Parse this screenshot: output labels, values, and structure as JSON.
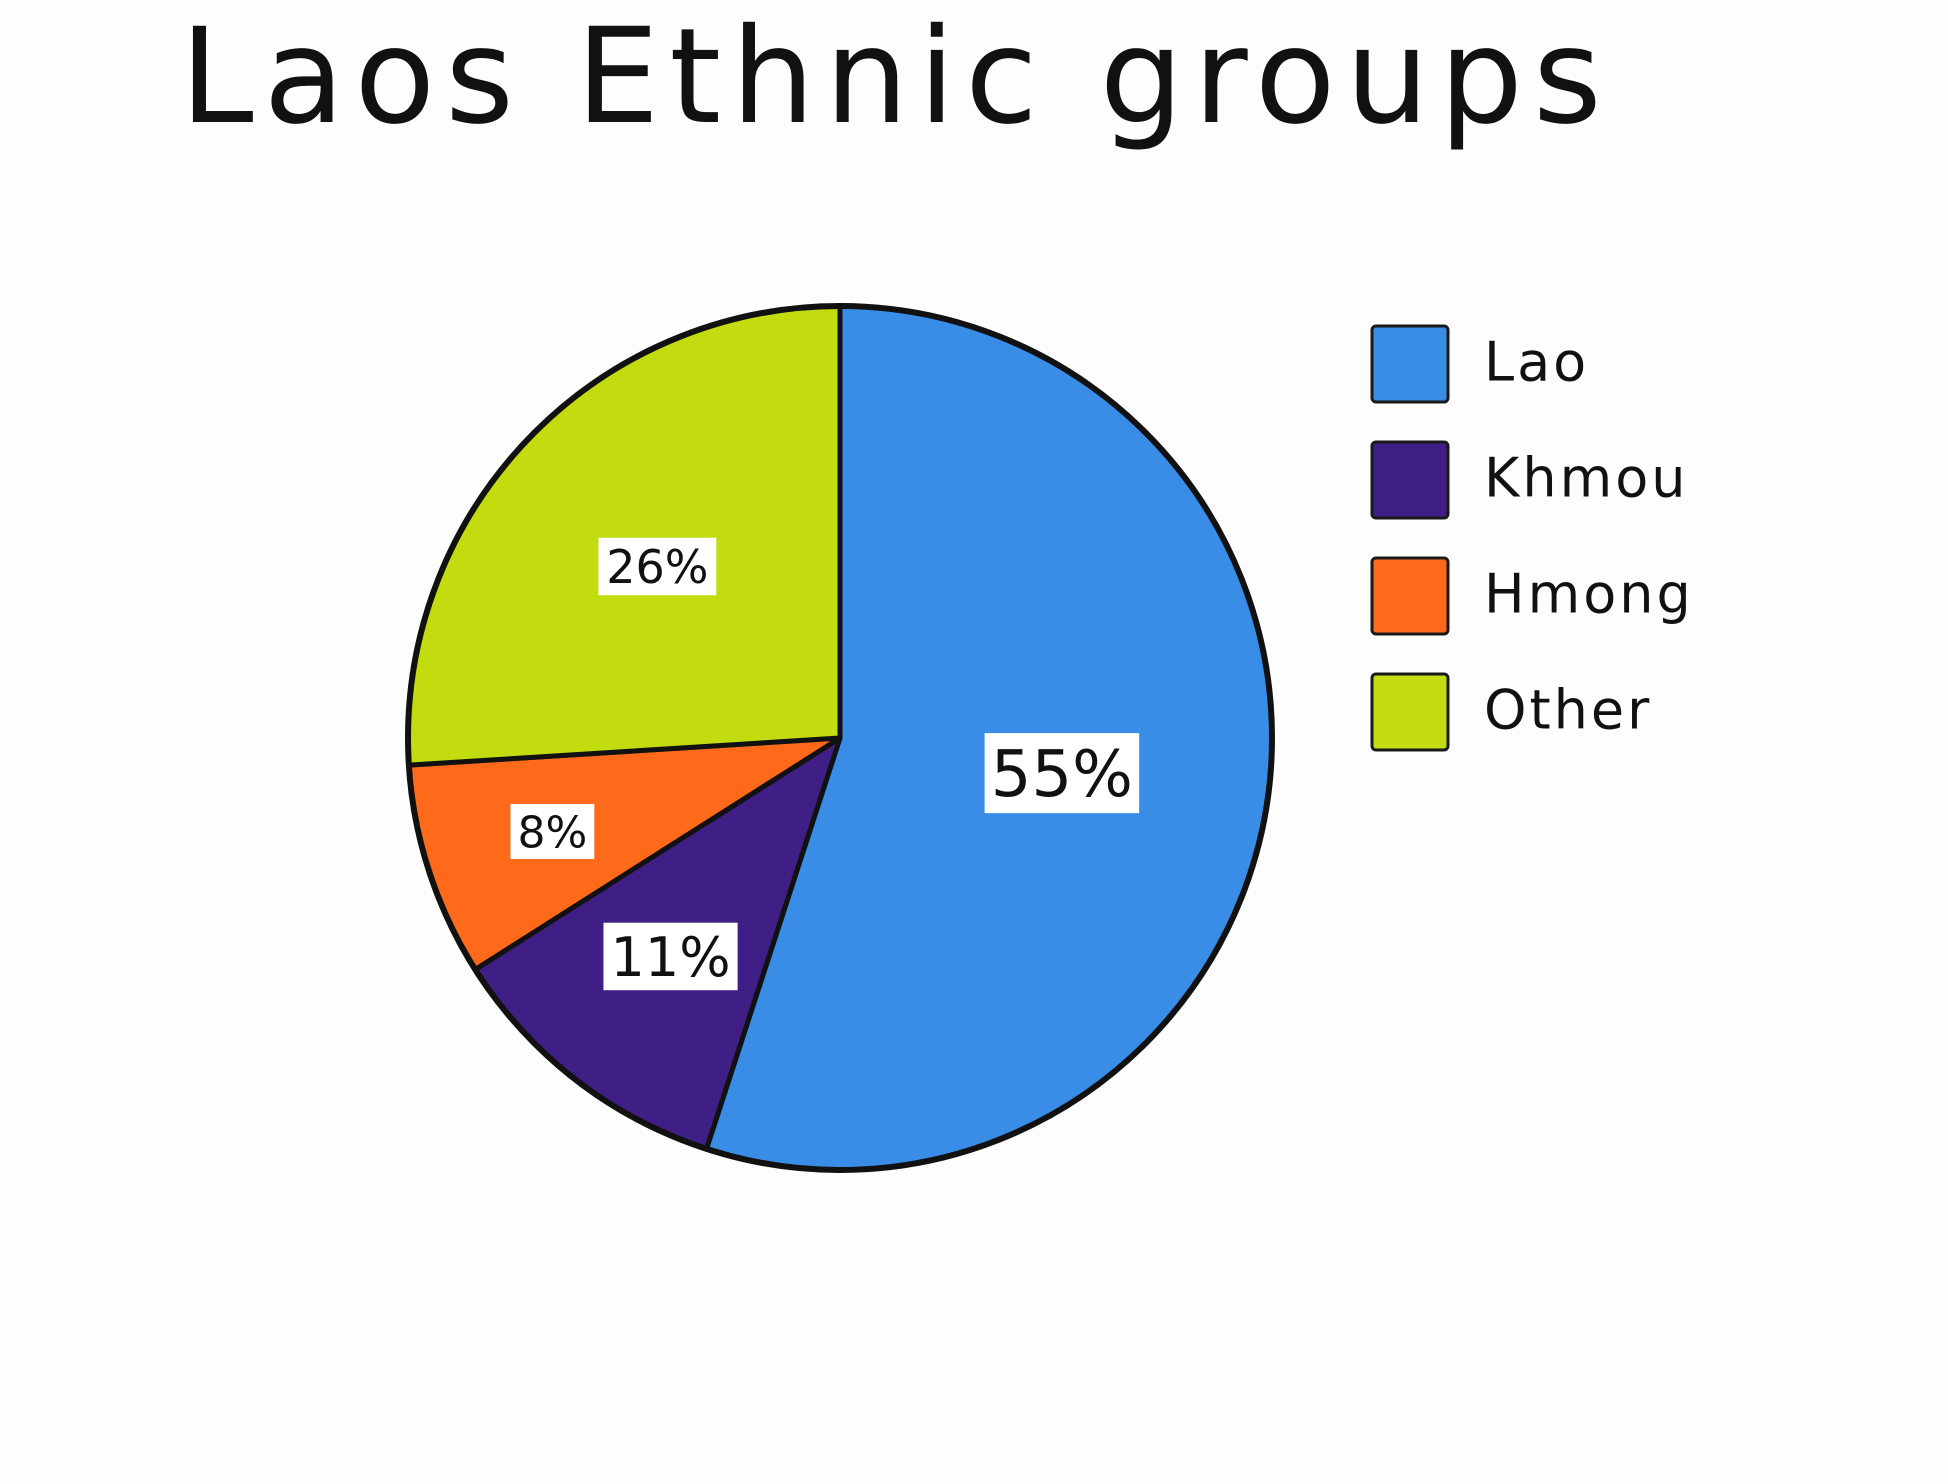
{
  "chart_data": {
    "type": "pie",
    "title": "Laos Ethnic groups",
    "categories": [
      "Lao",
      "Khmou",
      "Hmong",
      "Other"
    ],
    "values": [
      55,
      11,
      8,
      26
    ],
    "labels": [
      "55%",
      "11%",
      "8%",
      "26%"
    ],
    "colors": [
      "#3a8de6",
      "#3f1f86",
      "#ff6a1a",
      "#c2dc10"
    ],
    "legend_position": "right"
  }
}
